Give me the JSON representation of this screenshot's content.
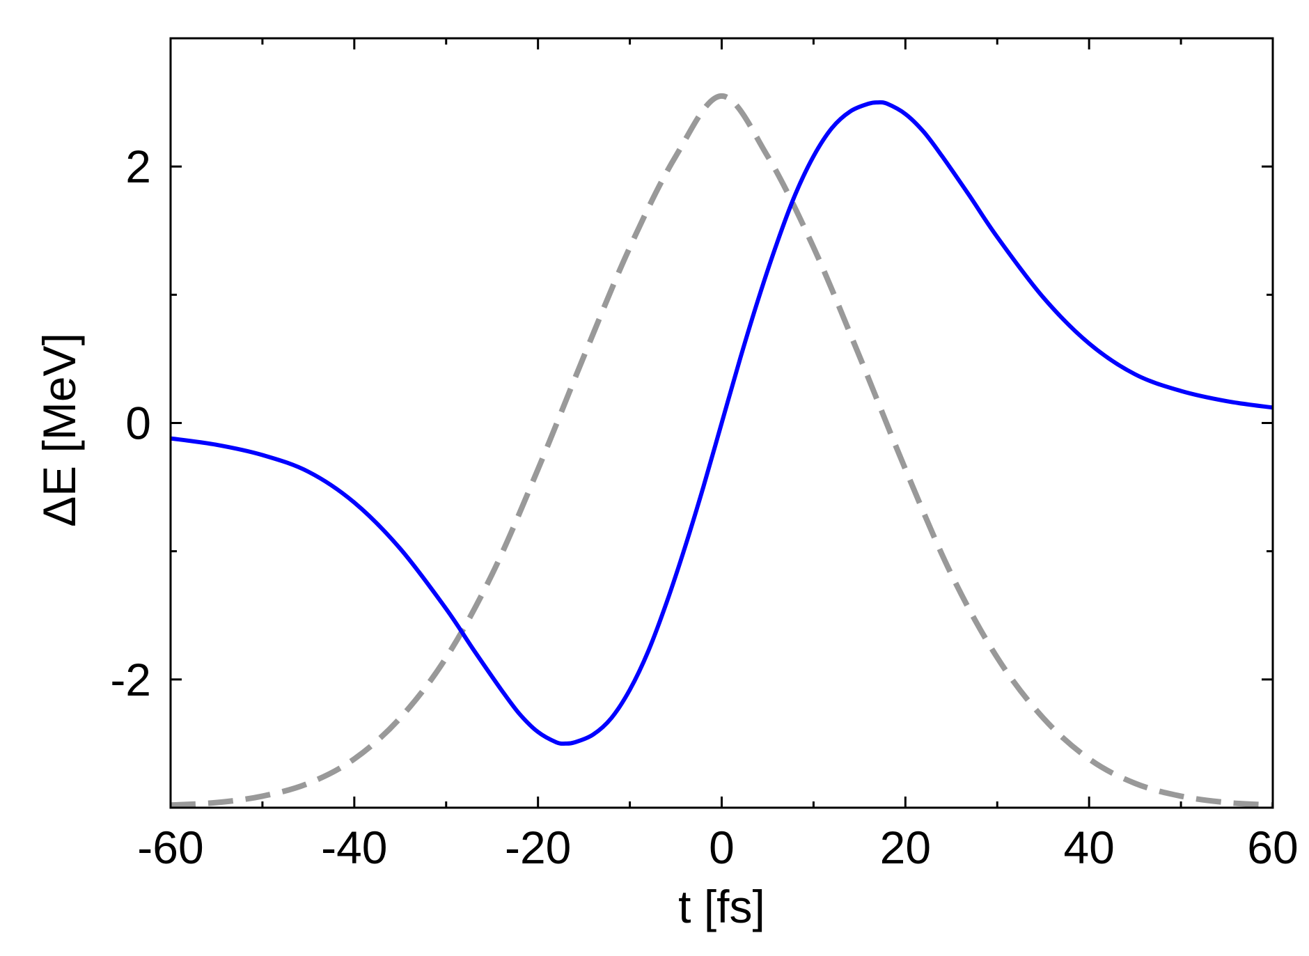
{
  "chart_data": {
    "type": "line",
    "xlabel": "t  [fs]",
    "ylabel": "ΔE  [MeV]",
    "xlim": [
      -60,
      60
    ],
    "ylim": [
      -3,
      3
    ],
    "x_ticks": [
      -60,
      -40,
      -20,
      0,
      20,
      40,
      60
    ],
    "x_tick_labels": [
      "-60",
      "-40",
      "-20",
      "0",
      "20",
      "40",
      "60"
    ],
    "x_minor_ticks": [
      -50,
      -30,
      -10,
      10,
      30,
      50
    ],
    "y_ticks": [
      -2,
      0,
      2
    ],
    "y_tick_labels": [
      "-2",
      "0",
      "2"
    ],
    "y_minor_ticks": [
      -1,
      1
    ],
    "grid": false,
    "legend": "none",
    "series": [
      {
        "style": "solid",
        "color": "#0000ff",
        "x": [
          -60,
          -55,
          -50,
          -45,
          -40,
          -35,
          -30,
          -27,
          -24,
          -22,
          -20,
          -18,
          -17,
          -16,
          -14,
          -12,
          -10,
          -8,
          -6,
          -4,
          -2,
          0,
          2,
          4,
          6,
          8,
          10,
          12,
          14,
          16,
          17,
          18,
          20,
          22,
          24,
          27,
          30,
          35,
          40,
          45,
          50,
          55,
          60
        ],
        "y": [
          -0.12,
          -0.17,
          -0.25,
          -0.38,
          -0.62,
          -0.98,
          -1.45,
          -1.77,
          -2.08,
          -2.27,
          -2.41,
          -2.49,
          -2.5,
          -2.49,
          -2.43,
          -2.3,
          -2.08,
          -1.78,
          -1.4,
          -0.97,
          -0.5,
          0.0,
          0.5,
          0.97,
          1.4,
          1.78,
          2.08,
          2.3,
          2.43,
          2.49,
          2.5,
          2.49,
          2.41,
          2.27,
          2.08,
          1.77,
          1.45,
          0.98,
          0.62,
          0.38,
          0.25,
          0.17,
          0.12
        ]
      },
      {
        "style": "dashed",
        "color": "#999999",
        "x": [
          -60,
          -55,
          -50,
          -45,
          -40,
          -35,
          -30,
          -25,
          -20,
          -15,
          -10,
          -5,
          0,
          5,
          10,
          15,
          20,
          25,
          30,
          35,
          40,
          45,
          50,
          55,
          60
        ],
        "y": [
          -2.98,
          -2.96,
          -2.91,
          -2.81,
          -2.62,
          -2.3,
          -1.83,
          -1.18,
          -0.36,
          0.52,
          1.37,
          2.08,
          2.55,
          2.08,
          1.37,
          0.52,
          -0.36,
          -1.18,
          -1.83,
          -2.3,
          -2.62,
          -2.81,
          -2.91,
          -2.96,
          -2.98
        ]
      }
    ]
  }
}
